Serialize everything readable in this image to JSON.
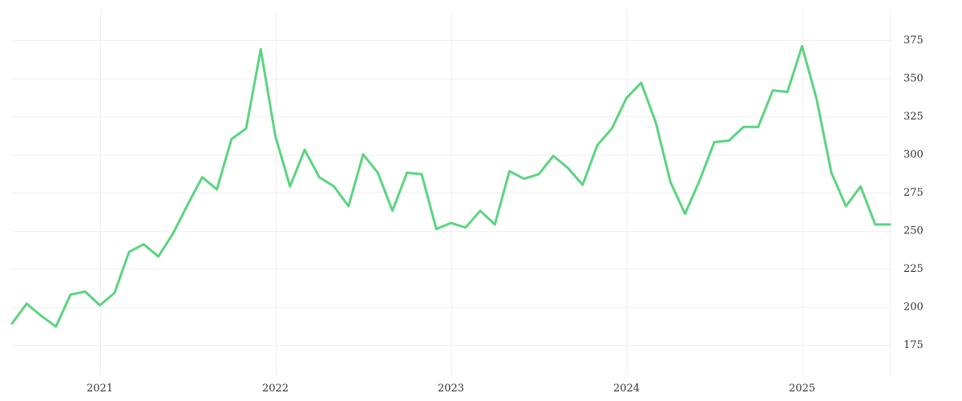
{
  "chart_data": {
    "type": "line",
    "title": "",
    "xlabel": "",
    "ylabel": "",
    "x_ticks": [
      "2021",
      "2022",
      "2023",
      "2024",
      "2025"
    ],
    "y_ticks": [
      175,
      200,
      225,
      250,
      275,
      300,
      325,
      350,
      375
    ],
    "xlim": [
      "2020-07",
      "2025-07"
    ],
    "ylim": [
      155,
      395
    ],
    "y_axis_position": "right",
    "grid": true,
    "legend": "none",
    "series": [
      {
        "color": "#5ad47f",
        "points": [
          [
            "2020-07",
            189
          ],
          [
            "2020-08",
            202
          ],
          [
            "2020-09",
            194
          ],
          [
            "2020-10",
            187
          ],
          [
            "2020-11",
            208
          ],
          [
            "2020-12",
            210
          ],
          [
            "2021-01",
            201
          ],
          [
            "2021-02",
            209
          ],
          [
            "2021-03",
            236
          ],
          [
            "2021-04",
            241
          ],
          [
            "2021-05",
            233
          ],
          [
            "2021-06",
            248
          ],
          [
            "2021-07",
            267
          ],
          [
            "2021-08",
            285
          ],
          [
            "2021-09",
            277
          ],
          [
            "2021-10",
            310
          ],
          [
            "2021-11",
            317
          ],
          [
            "2021-12",
            369
          ],
          [
            "2022-01",
            312
          ],
          [
            "2022-02",
            279
          ],
          [
            "2022-03",
            303
          ],
          [
            "2022-04",
            285
          ],
          [
            "2022-05",
            279
          ],
          [
            "2022-06",
            266
          ],
          [
            "2022-07",
            300
          ],
          [
            "2022-08",
            288
          ],
          [
            "2022-09",
            263
          ],
          [
            "2022-10",
            288
          ],
          [
            "2022-11",
            287
          ],
          [
            "2022-12",
            251
          ],
          [
            "2023-01",
            255
          ],
          [
            "2023-02",
            252
          ],
          [
            "2023-03",
            263
          ],
          [
            "2023-04",
            254
          ],
          [
            "2023-05",
            289
          ],
          [
            "2023-06",
            284
          ],
          [
            "2023-07",
            287
          ],
          [
            "2023-08",
            299
          ],
          [
            "2023-09",
            291
          ],
          [
            "2023-10",
            280
          ],
          [
            "2023-11",
            306
          ],
          [
            "2023-12",
            317
          ],
          [
            "2024-01",
            337
          ],
          [
            "2024-02",
            347
          ],
          [
            "2024-03",
            321
          ],
          [
            "2024-04",
            282
          ],
          [
            "2024-05",
            261
          ],
          [
            "2024-06",
            283
          ],
          [
            "2024-07",
            308
          ],
          [
            "2024-08",
            309
          ],
          [
            "2024-09",
            318
          ],
          [
            "2024-10",
            318
          ],
          [
            "2024-11",
            342
          ],
          [
            "2024-12",
            341
          ],
          [
            "2025-01",
            371
          ],
          [
            "2025-02",
            336
          ],
          [
            "2025-03",
            288
          ],
          [
            "2025-04",
            266
          ],
          [
            "2025-05",
            279
          ],
          [
            "2025-06",
            254
          ],
          [
            "2025-07",
            254
          ]
        ]
      }
    ]
  }
}
